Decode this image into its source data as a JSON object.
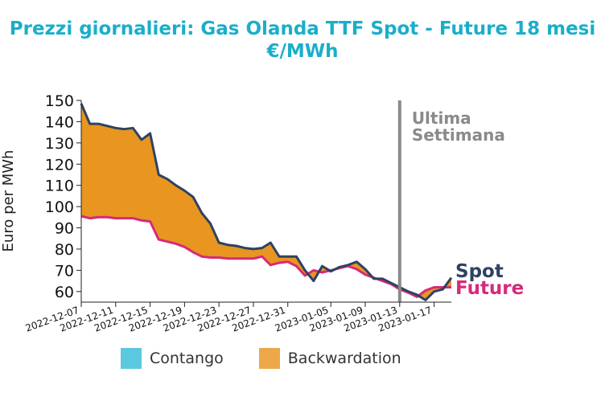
{
  "title_line1": "Prezzi giornalieri: Gas Olanda TTF Spot - Future 18 mesi",
  "title_line2": "€/MWh",
  "colors": {
    "title": "#1aaec9",
    "spot": "#2e4263",
    "future": "#d62a7a",
    "backwardation": "#e8961f",
    "contango": "#5bc8e0",
    "week_marker": "#8a8a8a"
  },
  "legend": {
    "contango_label": "Contango",
    "contango_color": "#5bc8e0",
    "backwardation_label": "Backwardation",
    "backwardation_color": "#eda84a"
  },
  "chart_data": {
    "type": "area",
    "ylabel": "Euro per MWh",
    "ylim": [
      55,
      150
    ],
    "yticks": [
      60,
      70,
      80,
      90,
      100,
      110,
      120,
      130,
      140,
      150
    ],
    "xlim": [
      "2022-12-07",
      "2023-01-19"
    ],
    "xticks": [
      "2022-12-07",
      "2022-12-11",
      "2022-12-15",
      "2022-12-19",
      "2022-12-23",
      "2022-12-27",
      "2022-12-31",
      "2023-01-05",
      "2023-01-09",
      "2023-01-13",
      "2023-01-17"
    ],
    "week_marker": {
      "x": "2023-01-13",
      "label_line1": "Ultima",
      "label_line2": "Settimana"
    },
    "series": [
      {
        "name": "Spot",
        "x": [
          "2022-12-07",
          "2022-12-08",
          "2022-12-09",
          "2022-12-10",
          "2022-12-11",
          "2022-12-12",
          "2022-12-13",
          "2022-12-14",
          "2022-12-15",
          "2022-12-16",
          "2022-12-17",
          "2022-12-18",
          "2022-12-19",
          "2022-12-20",
          "2022-12-21",
          "2022-12-22",
          "2022-12-23",
          "2022-12-24",
          "2022-12-25",
          "2022-12-26",
          "2022-12-27",
          "2022-12-28",
          "2022-12-29",
          "2022-12-30",
          "2022-12-31",
          "2023-01-01",
          "2023-01-02",
          "2023-01-03",
          "2023-01-04",
          "2023-01-05",
          "2023-01-06",
          "2023-01-07",
          "2023-01-08",
          "2023-01-09",
          "2023-01-10",
          "2023-01-11",
          "2023-01-12",
          "2023-01-13",
          "2023-01-14",
          "2023-01-15",
          "2023-01-16",
          "2023-01-17",
          "2023-01-18",
          "2023-01-19"
        ],
        "values": [
          148.5,
          139,
          139,
          138,
          137,
          136.5,
          137,
          131.5,
          134.5,
          115,
          113,
          110,
          107.5,
          104.5,
          97,
          92,
          83,
          82,
          81.5,
          80.5,
          80,
          80.5,
          83,
          76.5,
          76.5,
          76.5,
          70,
          65,
          72,
          69.5,
          71.5,
          72.5,
          74,
          70.5,
          66,
          66,
          64,
          62,
          60,
          58.5,
          56,
          60,
          61,
          66.5
        ]
      },
      {
        "name": "Future",
        "x": [
          "2022-12-07",
          "2022-12-08",
          "2022-12-09",
          "2022-12-10",
          "2022-12-11",
          "2022-12-12",
          "2022-12-13",
          "2022-12-14",
          "2022-12-15",
          "2022-12-16",
          "2022-12-17",
          "2022-12-18",
          "2022-12-19",
          "2022-12-20",
          "2022-12-21",
          "2022-12-22",
          "2022-12-23",
          "2022-12-24",
          "2022-12-25",
          "2022-12-26",
          "2022-12-27",
          "2022-12-28",
          "2022-12-29",
          "2022-12-30",
          "2022-12-31",
          "2023-01-01",
          "2023-01-02",
          "2023-01-03",
          "2023-01-04",
          "2023-01-05",
          "2023-01-06",
          "2023-01-07",
          "2023-01-08",
          "2023-01-09",
          "2023-01-10",
          "2023-01-11",
          "2023-01-12",
          "2023-01-13",
          "2023-01-14",
          "2023-01-15",
          "2023-01-16",
          "2023-01-17",
          "2023-01-18",
          "2023-01-19"
        ],
        "values": [
          95.5,
          94.5,
          95,
          95,
          94.5,
          94.5,
          94.5,
          93.5,
          93,
          84.5,
          83.5,
          82.5,
          81,
          78.5,
          76.5,
          76,
          76,
          75.5,
          75.5,
          75.5,
          75.5,
          76.5,
          72.5,
          73.5,
          74,
          72,
          67.5,
          70,
          69,
          70,
          71,
          72,
          70.5,
          68,
          66.5,
          65,
          63.5,
          61,
          59.5,
          57.5,
          60.5,
          62,
          62,
          62
        ]
      }
    ],
    "area_legend": [
      "Contango",
      "Backwardation"
    ],
    "end_labels": [
      "Spot",
      "Future"
    ]
  }
}
